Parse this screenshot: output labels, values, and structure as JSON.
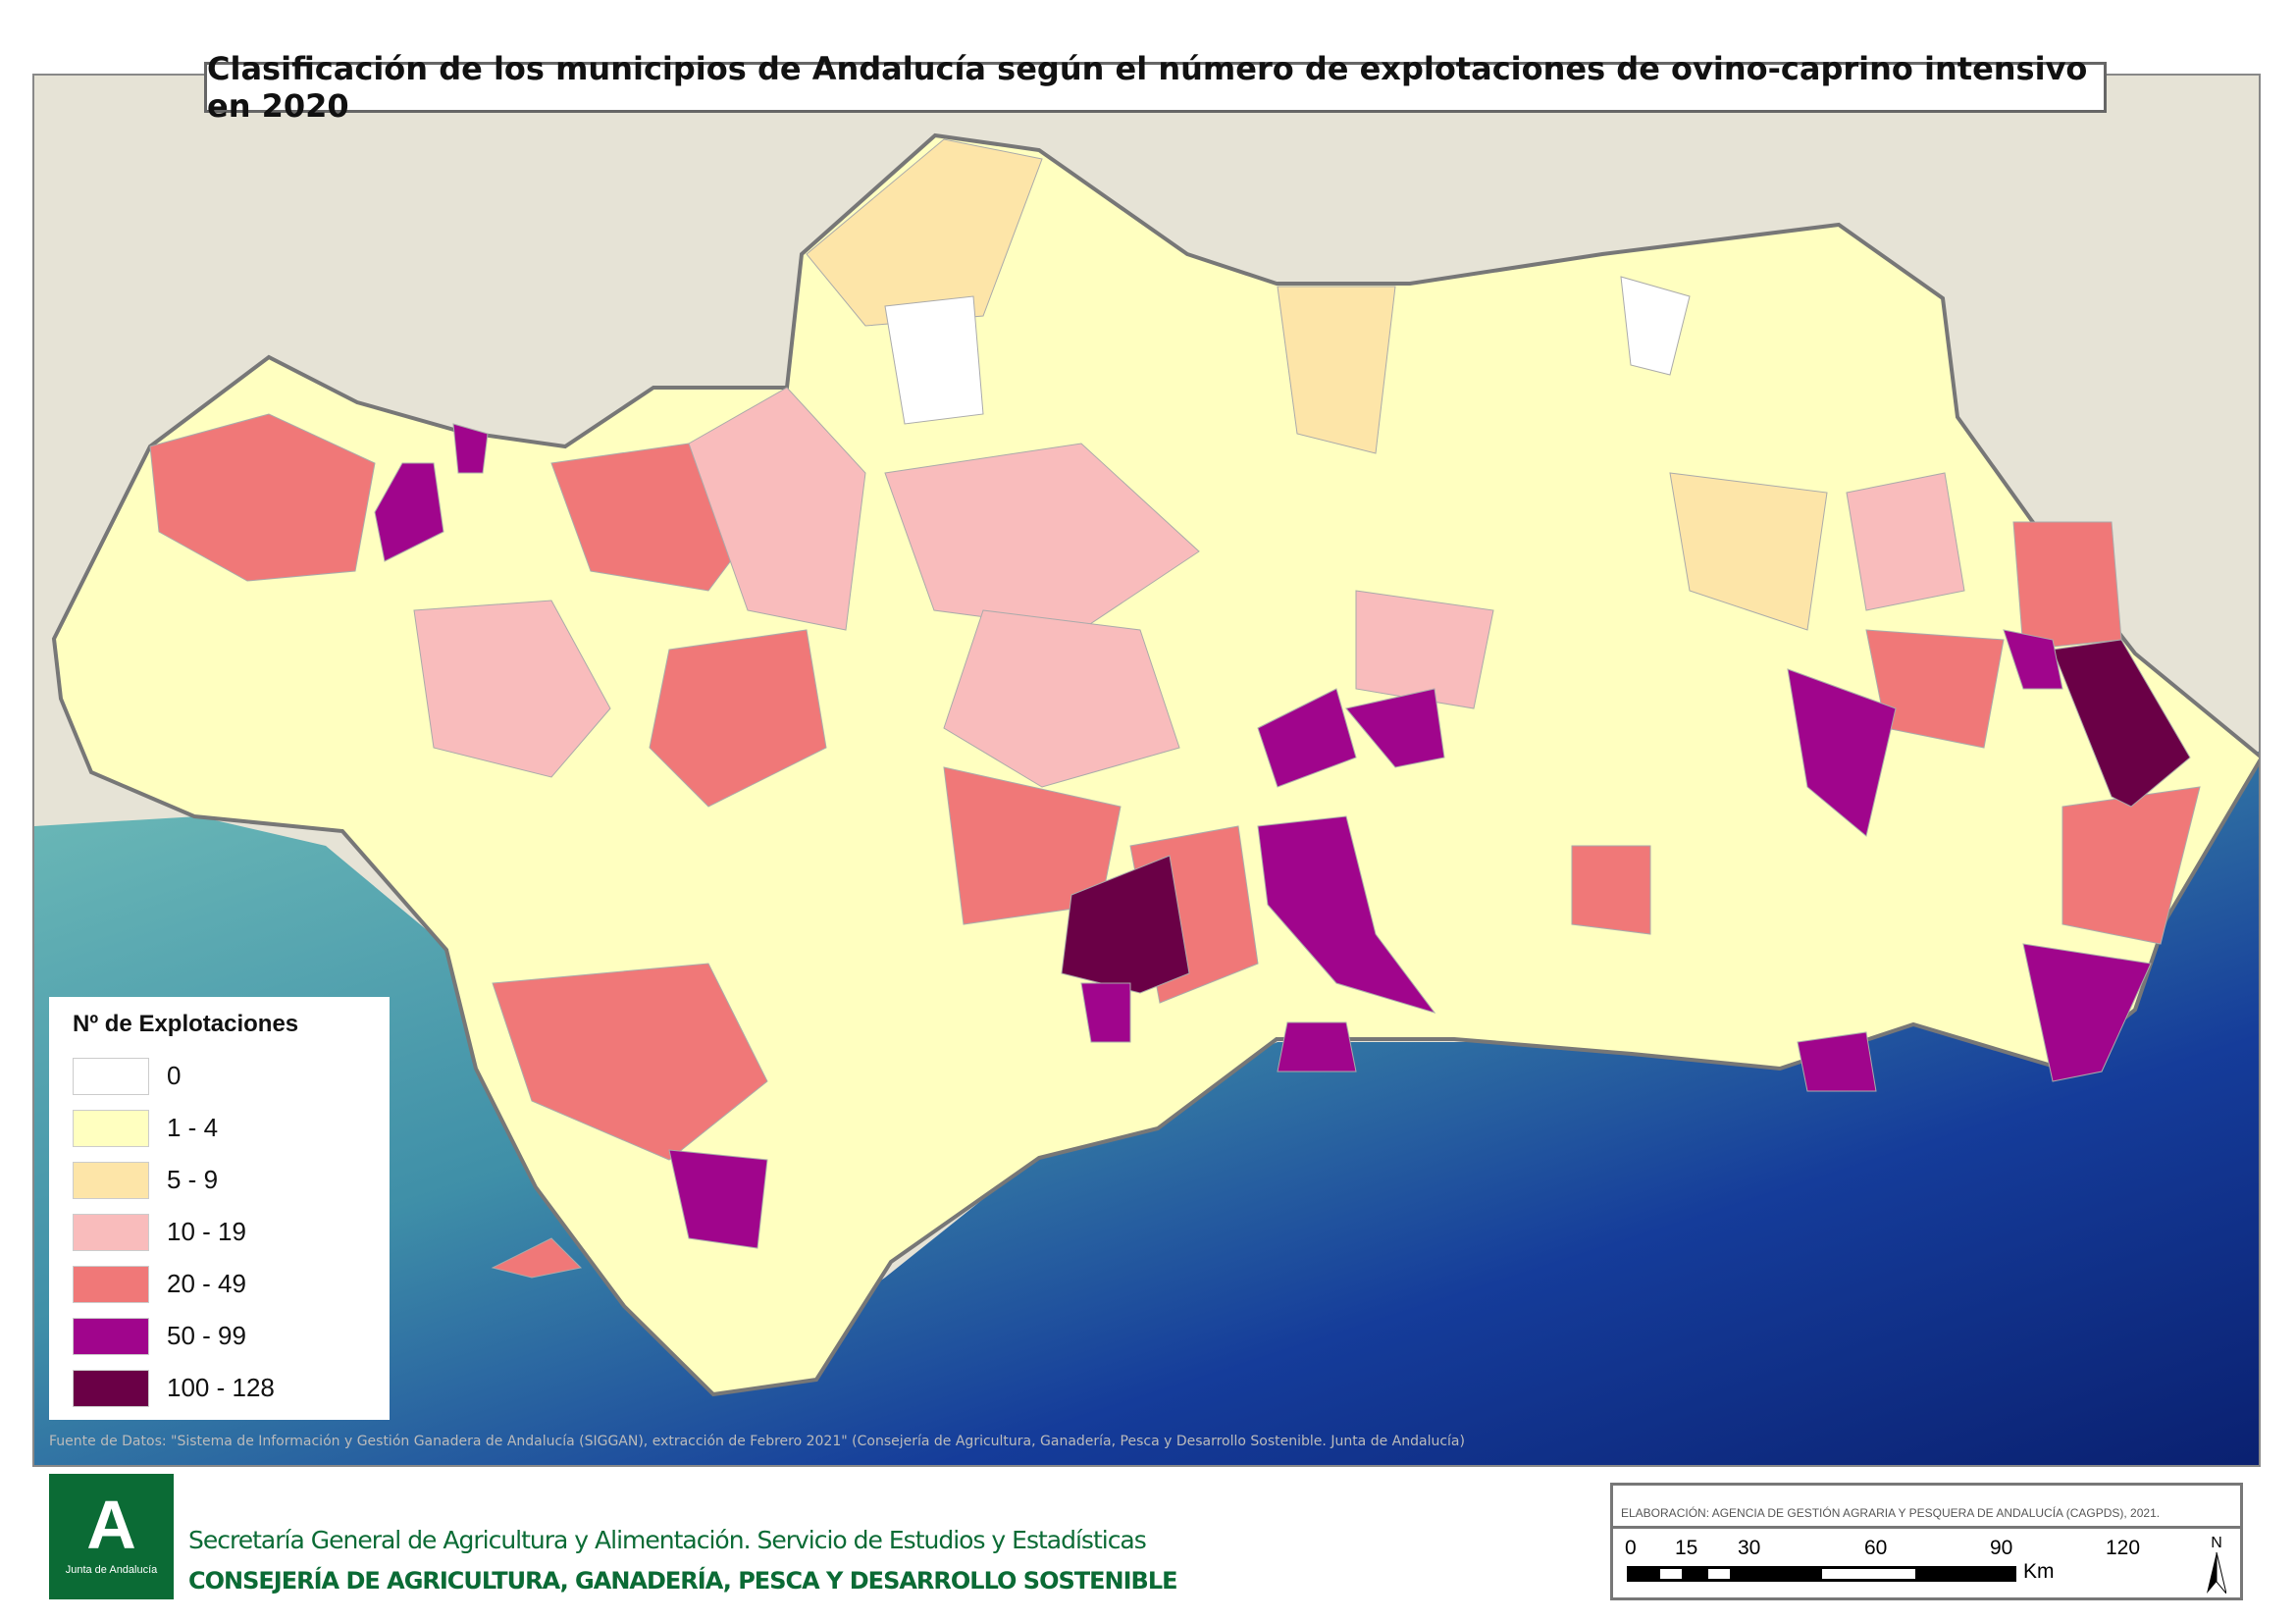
{
  "title": "Clasificación de los municipios de Andalucía según el número de explotaciones de ovino-caprino intensivo en 2020",
  "legend": {
    "title": "Nº de Explotaciones",
    "items": [
      {
        "label": "0",
        "color": "#ffffff"
      },
      {
        "label": "1 - 4",
        "color": "#ffffc0"
      },
      {
        "label": "5 - 9",
        "color": "#fde5a8"
      },
      {
        "label": "10 - 19",
        "color": "#f9bcbc"
      },
      {
        "label": "20 - 49",
        "color": "#f07878"
      },
      {
        "label": "50 - 99",
        "color": "#a0058c"
      },
      {
        "label": "100 - 128",
        "color": "#6a0046"
      }
    ]
  },
  "source": "Fuente de Datos: \"Sistema de Información y Gestión Ganadera de Andalucía (SIGGAN), extracción de Febrero 2021\" (Consejería de Agricultura, Ganadería, Pesca y Desarrollo Sostenible. Junta de Andalucía)",
  "logo": {
    "letter": "A",
    "text": "Junta de Andalucía"
  },
  "org_line1": "Secretaría General de Agricultura y Alimentación. Servicio de Estudios y Estadísticas",
  "org_line2": "CONSEJERÍA DE AGRICULTURA, GANADERÍA, PESCA Y DESARROLLO SOSTENIBLE",
  "elaboracion": "ELABORACIÓN: AGENCIA DE GESTIÓN AGRARIA Y PESQUERA DE ANDALUCÍA (CAGPDS), 2021.",
  "scale": {
    "ticks": [
      "0",
      "15",
      "30",
      "60",
      "90",
      "120"
    ],
    "unit": "Km"
  },
  "north": "N"
}
